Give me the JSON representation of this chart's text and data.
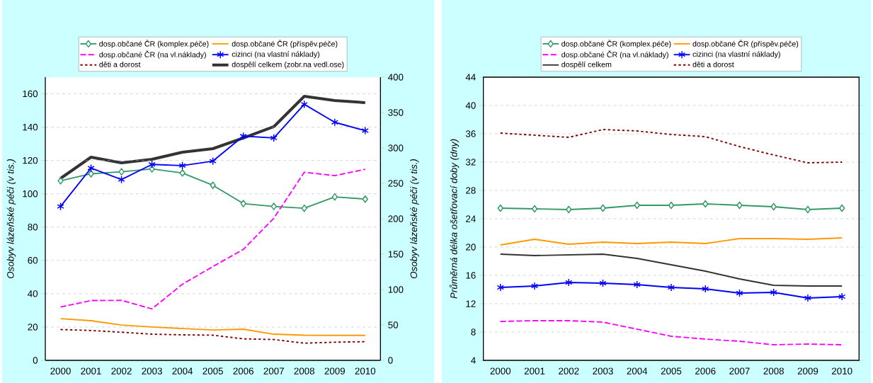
{
  "chart_data": [
    {
      "type": "line",
      "categories": [
        "2000",
        "2001",
        "2002",
        "2003",
        "2004",
        "2005",
        "2006",
        "2007",
        "2008",
        "2009",
        "2010"
      ],
      "ylabel": "Osobyv lázeňské péči (v tis.)",
      "y2label": "Osobyv lázeňské péči (v tis.)",
      "ylim": [
        0,
        170
      ],
      "yticks": [
        0,
        20,
        40,
        60,
        80,
        100,
        120,
        140,
        160
      ],
      "y2lim": [
        0,
        400
      ],
      "y2ticks": [
        0,
        50,
        100,
        150,
        200,
        250,
        300,
        350,
        400
      ],
      "grid": "y",
      "legend": "top",
      "series": [
        {
          "name": "dosp.občané ČR (komplex.péče)",
          "color": "#339966",
          "marker": "diamond",
          "line_style": "solid",
          "values": [
            107.8,
            112,
            113.2,
            114.9,
            112.5,
            105.1,
            94.1,
            92.4,
            91.3,
            98.1,
            96.8
          ]
        },
        {
          "name": "dosp.občané ČR (příspěv.péče)",
          "color": "#ff9900",
          "marker": "none",
          "line_style": "solid",
          "values": [
            25,
            23.8,
            21.2,
            20,
            19.1,
            18.2,
            18.7,
            15.7,
            15.1,
            15,
            15
          ]
        },
        {
          "name": "dosp.občané ČR (na vl.náklady)",
          "color": "#ff00ff",
          "marker": "none",
          "line_style": "dashed",
          "values": [
            32,
            35.9,
            36,
            30.9,
            45.7,
            56.3,
            66.6,
            85.3,
            112.9,
            110.9,
            114.7
          ]
        },
        {
          "name": "cizinci (na vlastní náklady)",
          "color": "#0000ff",
          "marker": "cross",
          "line_style": "solid",
          "values": [
            92.4,
            115.4,
            108.5,
            117.6,
            116.9,
            119.6,
            134.6,
            133.5,
            153.7,
            142.9,
            137.9
          ]
        },
        {
          "name": "děti a dorost",
          "color": "#800000",
          "marker": "none",
          "line_style": "dotted",
          "values": [
            18.5,
            17.9,
            16.9,
            15.7,
            15.3,
            15.1,
            12.9,
            12.5,
            10.3,
            10.9,
            11.2
          ]
        },
        {
          "name": "dospělí celkem (zobr.na vedl.ose)",
          "color": "#333333",
          "marker": "none",
          "line_style": "solid",
          "axis": "y2",
          "values": [
            257,
            287,
            279,
            284,
            294,
            299,
            314,
            330,
            373,
            367,
            364
          ]
        }
      ]
    },
    {
      "type": "line",
      "categories": [
        "2000",
        "2001",
        "2002",
        "2003",
        "2004",
        "2005",
        "2006",
        "2007",
        "2008",
        "2009",
        "2010"
      ],
      "ylabel": "Průměrná délka ošetřovací doby (dny)",
      "ylim": [
        4,
        44
      ],
      "yticks": [
        4,
        8,
        12,
        16,
        20,
        24,
        28,
        32,
        36,
        40,
        44
      ],
      "grid": "y",
      "legend": "top",
      "series": [
        {
          "name": "dosp.občané ČR (komplex.péče)",
          "color": "#339966",
          "marker": "diamond",
          "line_style": "solid",
          "values": [
            25.5,
            25.4,
            25.3,
            25.5,
            25.9,
            25.9,
            26.1,
            25.9,
            25.7,
            25.3,
            25.5
          ]
        },
        {
          "name": "dosp.občané ČR (příspěv.péče)",
          "color": "#ff9900",
          "marker": "none",
          "line_style": "solid",
          "values": [
            20.3,
            21.1,
            20.4,
            20.7,
            20.5,
            20.7,
            20.5,
            21.2,
            21.2,
            21.1,
            21.3
          ]
        },
        {
          "name": "dosp.občané ČR (na vl.náklady)",
          "color": "#ff00ff",
          "marker": "none",
          "line_style": "dashed",
          "values": [
            9.5,
            9.6,
            9.6,
            9.4,
            8.4,
            7.4,
            7.0,
            6.7,
            6.2,
            6.3,
            6.2
          ]
        },
        {
          "name": "cizinci (na vlastní náklady)",
          "color": "#0000ff",
          "marker": "cross",
          "line_style": "solid",
          "values": [
            14.3,
            14.5,
            15.0,
            14.9,
            14.7,
            14.3,
            14.1,
            13.5,
            13.6,
            12.8,
            13.0
          ]
        },
        {
          "name": "dospělí celkem",
          "color": "#333333",
          "marker": "none",
          "line_style": "solid",
          "values": [
            19.0,
            18.8,
            18.9,
            19.0,
            18.4,
            17.5,
            16.6,
            15.5,
            14.6,
            14.5,
            14.5
          ]
        },
        {
          "name": "děti a dorost",
          "color": "#800000",
          "marker": "none",
          "line_style": "dotted",
          "values": [
            36.1,
            35.8,
            35.5,
            36.6,
            36.4,
            35.9,
            35.6,
            34.2,
            33.0,
            31.9,
            32.0
          ]
        }
      ]
    }
  ]
}
